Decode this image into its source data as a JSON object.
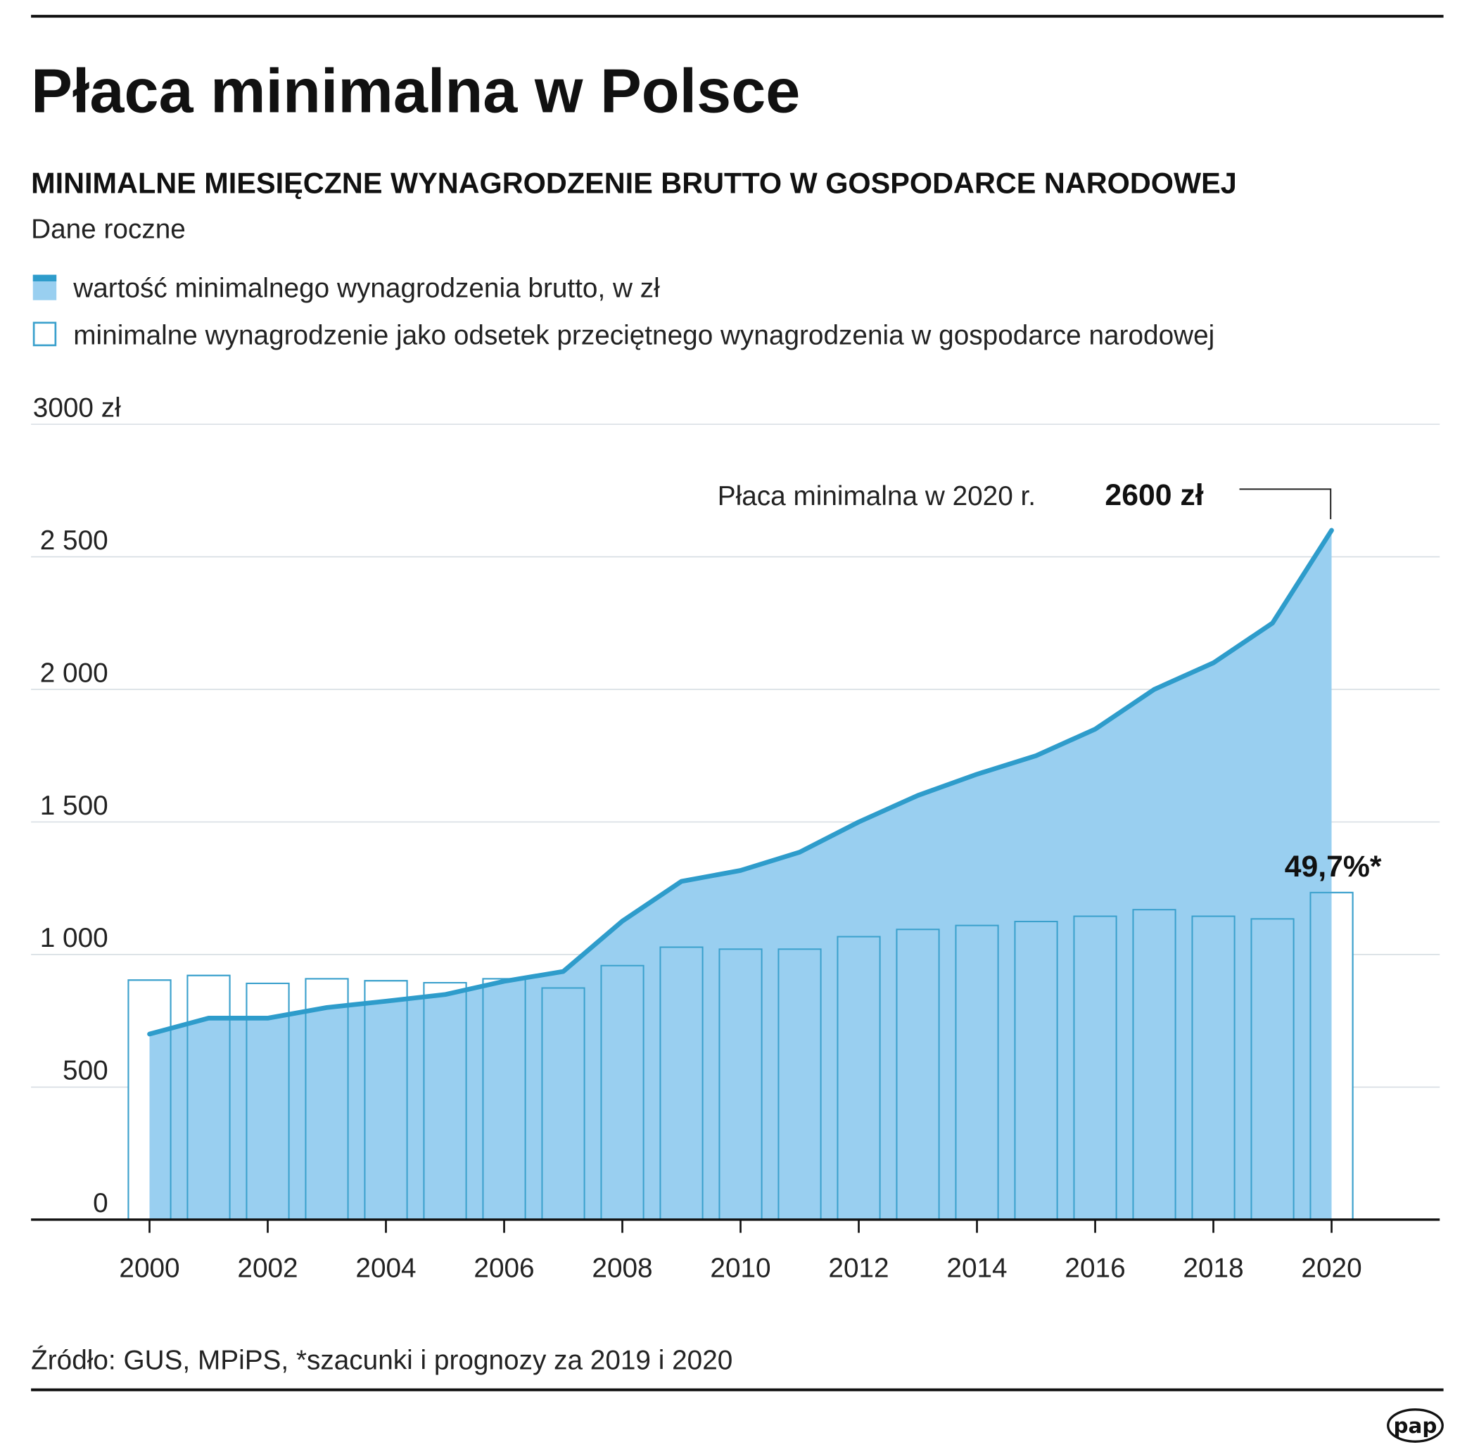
{
  "title": "Płaca minimalna w Polsce",
  "subtitle": "MINIMALNE MIESIĘCZNE WYNAGRODZENIE BRUTTO W GOSPODARCE NARODOWEJ",
  "note": "Dane roczne",
  "legend": [
    {
      "label": "wartość minimalnego wynagrodzenia brutto, w zł",
      "icon": "filled-area-swatch"
    },
    {
      "label": "minimalne wynagrodzenie jako odsetek przeciętnego wynagrodzenia w gospodarce narodowej",
      "icon": "outlined-bar-swatch"
    }
  ],
  "annotation": {
    "text": "Płaca minimalna w 2020 r.",
    "value": "2600 zł"
  },
  "bar_label": "49,7%*",
  "source": "Źródło: GUS, MPiPS, *szacunki i prognozy za 2019 i 2020",
  "logo": "pap",
  "colors": {
    "area": "#99cff0",
    "line": "#2e9ccb",
    "bar_stroke": "#3aa0cc",
    "grid": "#d6dde2"
  },
  "chart_data": {
    "type": "area",
    "x": [
      2000,
      2001,
      2002,
      2003,
      2004,
      2005,
      2006,
      2007,
      2008,
      2009,
      2010,
      2011,
      2012,
      2013,
      2014,
      2015,
      2016,
      2017,
      2018,
      2019,
      2020
    ],
    "series": [
      {
        "name": "wartość minimalnego wynagrodzenia brutto, w zł",
        "type": "area",
        "values": [
          700,
          760,
          760,
          800,
          824,
          849,
          899,
          936,
          1126,
          1276,
          1317,
          1386,
          1500,
          1600,
          1680,
          1750,
          1850,
          2000,
          2100,
          2250,
          2600
        ]
      },
      {
        "name": "minimalne wynagrodzenie jako odsetek przeciętnego wynagrodzenia w gospodarce narodowej",
        "type": "bar",
        "unit": "%",
        "values": [
          36.4,
          37.1,
          35.9,
          36.6,
          36.3,
          36.0,
          36.6,
          35.2,
          38.6,
          41.4,
          41.1,
          41.1,
          43.0,
          44.1,
          44.7,
          45.3,
          46.1,
          47.1,
          46.1,
          45.7,
          49.7
        ]
      }
    ],
    "ylim": [
      0,
      3000
    ],
    "yticks": [
      0,
      500,
      1000,
      1500,
      2000,
      2500,
      3000
    ],
    "ytick_labels": [
      "0",
      "500",
      "1 000",
      "1 500",
      "2 000",
      "2 500",
      "3000 zł"
    ],
    "xtick_labels": [
      "2000",
      "2002",
      "2004",
      "2006",
      "2008",
      "2010",
      "2012",
      "2014",
      "2016",
      "2018",
      "2020"
    ],
    "grid": true,
    "legend_position": "top-left"
  }
}
